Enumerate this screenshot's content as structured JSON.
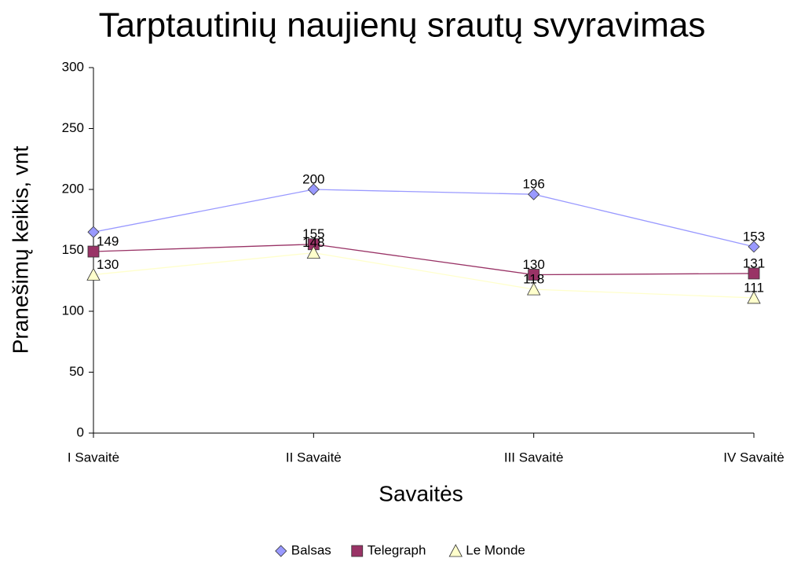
{
  "chart_data": {
    "type": "line",
    "title": "Tarptautinių naujienų srautų svyravimas",
    "xlabel": "Savaitės",
    "ylabel": "Pranešimų keikis, vnt",
    "categories": [
      "I Savaitė",
      "II Savaitė",
      "III Savaitė",
      "IV Savaitė"
    ],
    "series": [
      {
        "name": "Balsas",
        "color": "#9999ff",
        "marker": "diamond",
        "values": [
          165,
          200,
          196,
          153
        ],
        "value_labels": [
          null,
          "200",
          "196",
          "153"
        ]
      },
      {
        "name": "Telegraph",
        "color": "#993366",
        "marker": "square",
        "values": [
          149,
          155,
          130,
          131
        ]
      },
      {
        "name": "Le Monde",
        "color": "#ffffcc",
        "marker": "triangle",
        "values": [
          130,
          148,
          118,
          111
        ]
      }
    ],
    "ylim": [
      0,
      300
    ],
    "yticks": [
      0,
      50,
      100,
      150,
      200,
      250,
      300
    ],
    "legend": "bottom"
  }
}
